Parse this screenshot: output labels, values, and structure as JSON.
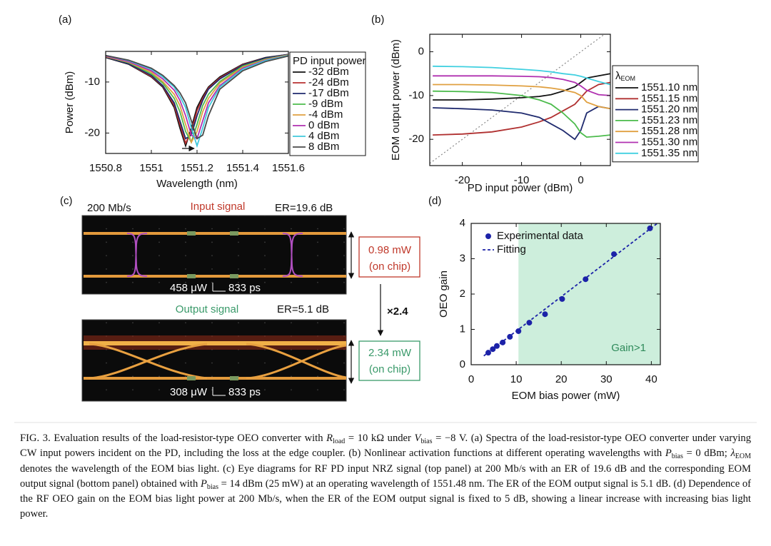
{
  "chart_data": [
    {
      "type": "line",
      "panel": "(a)",
      "x_label": "Wavelength (nm)",
      "y_label": "Power (dBm)",
      "x": [
        1550.8,
        1550.9,
        1551.0,
        1551.05,
        1551.1,
        1551.125,
        1551.15,
        1551.175,
        1551.2,
        1551.225,
        1551.25,
        1551.3,
        1551.4,
        1551.5,
        1551.6
      ],
      "xlim": [
        1550.8,
        1551.6
      ],
      "xticks": [
        1550.8,
        1551,
        1551.2,
        1551.4,
        1551.6
      ],
      "ylim": [
        -24,
        -4
      ],
      "yticks": [
        -20,
        -10
      ],
      "legend": "right",
      "legend_title": "PD input power",
      "series": [
        {
          "name": "-32 dBm",
          "color": "#111111",
          "values": [
            -5.2,
            -6.5,
            -9,
            -11,
            -15,
            -19,
            -22.5,
            -19,
            -15,
            -12.8,
            -11,
            -9,
            -6.5,
            -5.2,
            -4.6
          ]
        },
        {
          "name": "-24 dBm",
          "color": "#b83030",
          "values": [
            -5.1,
            -6.4,
            -8.9,
            -10.8,
            -14.6,
            -18.3,
            -22,
            -19.7,
            -15.6,
            -13.2,
            -11.2,
            -9.2,
            -6.6,
            -5.3,
            -4.6
          ]
        },
        {
          "name": "-17 dBm",
          "color": "#1f2a6e",
          "values": [
            -5.1,
            -6.4,
            -8.7,
            -10.7,
            -14.1,
            -17.6,
            -21.1,
            -20.4,
            -16.6,
            -13.6,
            -11.4,
            -9.4,
            -6.7,
            -5.3,
            -4.6
          ]
        },
        {
          "name": "-9 dBm",
          "color": "#4cbb4c",
          "values": [
            -5,
            -6.2,
            -8.4,
            -10.2,
            -13.2,
            -15.8,
            -19.7,
            -21.8,
            -18.3,
            -14.6,
            -12.4,
            -9.9,
            -6.9,
            -5.5,
            -4.7
          ]
        },
        {
          "name": "-4 dBm",
          "color": "#e0a040",
          "values": [
            -5,
            -6.1,
            -8.1,
            -9.9,
            -12.4,
            -14.6,
            -18.3,
            -21.8,
            -19.7,
            -15.8,
            -13.2,
            -10.2,
            -7.1,
            -5.6,
            -4.7
          ]
        },
        {
          "name": "0 dBm",
          "color": "#b030b0",
          "values": [
            -4.9,
            -6,
            -7.8,
            -9.4,
            -11.6,
            -13.6,
            -16.6,
            -20.4,
            -21.1,
            -17.6,
            -14.1,
            -10.7,
            -7.3,
            -5.7,
            -4.8
          ]
        },
        {
          "name": "4 dBm",
          "color": "#40c8dc",
          "values": [
            -4.8,
            -5.8,
            -7.5,
            -9,
            -11,
            -12.8,
            -15,
            -19,
            -22.5,
            -19,
            -15,
            -11,
            -7.5,
            -5.8,
            -4.8
          ]
        },
        {
          "name": "8 dBm",
          "color": "#4a4a4a",
          "values": [
            -4.8,
            -5.7,
            -7.3,
            -8.7,
            -10.7,
            -12.1,
            -14.1,
            -17.6,
            -21.1,
            -20.4,
            -16.6,
            -11.4,
            -7.8,
            -6,
            -4.9
          ]
        }
      ]
    },
    {
      "type": "line",
      "panel": "(b)",
      "x_label": "PD input power (dBm)",
      "y_label": "EOM output power (dBm)",
      "x": [
        -25,
        -20,
        -15,
        -10,
        -7,
        -5,
        -3,
        -1,
        0,
        1,
        3,
        5
      ],
      "xlim": [
        -25.5,
        5
      ],
      "xticks": [
        -20,
        -10,
        0
      ],
      "ylim": [
        -26,
        4
      ],
      "yticks": [
        -20,
        -10,
        0
      ],
      "legend": "right",
      "legend_title": {
        "symbol": "λ",
        "subscript": "EOM"
      },
      "series": [
        {
          "name": "1551.10 nm",
          "color": "#111111",
          "values": [
            -11,
            -11,
            -10.8,
            -10.5,
            -10.2,
            -9.8,
            -9,
            -8,
            -7,
            -6,
            -5.5,
            -5
          ]
        },
        {
          "name": "1551.15 nm",
          "color": "#b03030",
          "values": [
            -19,
            -18.8,
            -18.3,
            -17.2,
            -16,
            -15,
            -13.5,
            -12,
            -10.5,
            -9,
            -7.5,
            -7
          ]
        },
        {
          "name": "1551.20 nm",
          "color": "#1f2a6e",
          "values": [
            -12.8,
            -13,
            -13.3,
            -14,
            -15,
            -16.5,
            -18,
            -20,
            -18,
            -14,
            -12.5,
            -13
          ]
        },
        {
          "name": "1551.23 nm",
          "color": "#4cbb4c",
          "values": [
            -9,
            -9.1,
            -9.3,
            -10,
            -11,
            -12,
            -14,
            -16.5,
            -18.5,
            -19.5,
            -19.3,
            -19
          ]
        },
        {
          "name": "1551.28 nm",
          "color": "#e0a040",
          "values": [
            -7.5,
            -7.5,
            -7.6,
            -7.8,
            -8,
            -8.3,
            -8.7,
            -9.3,
            -10,
            -11.5,
            -12.5,
            -13
          ]
        },
        {
          "name": "1551.30 nm",
          "color": "#b030b0",
          "values": [
            -5.5,
            -5.5,
            -5.5,
            -5.6,
            -5.7,
            -5.9,
            -6.3,
            -7,
            -7.8,
            -8.8,
            -9.8,
            -10
          ]
        },
        {
          "name": "1551.35 nm",
          "color": "#40d0e0",
          "values": [
            -3.3,
            -3.4,
            -3.6,
            -4,
            -4.3,
            -4.6,
            -5,
            -5.3,
            -5.6,
            -6,
            -6.8,
            -7.5
          ]
        }
      ]
    },
    {
      "type": "scatter",
      "panel": "(d)",
      "x_label": "EOM bias power (mW)",
      "y_label": "OEO gain",
      "xlim": [
        0,
        42
      ],
      "xticks": [
        0,
        10,
        20,
        30,
        40
      ],
      "ylim": [
        0,
        4
      ],
      "yticks": [
        0,
        1,
        2,
        3,
        4
      ],
      "legend": "upper left",
      "shade": {
        "x": [
          10.5,
          42
        ],
        "color": "#cdeedc",
        "label": "Gain>1"
      },
      "series": [
        {
          "name": "Experimental data",
          "color": "#1c22a8",
          "x": [
            3.8,
            4.8,
            5.7,
            7.0,
            8.6,
            10.5,
            12.9,
            16.4,
            20.2,
            25.4,
            31.7,
            39.7
          ],
          "values": [
            0.34,
            0.44,
            0.53,
            0.63,
            0.79,
            0.95,
            1.19,
            1.43,
            1.86,
            2.42,
            3.13,
            3.86
          ]
        },
        {
          "name": "Fitting",
          "type": "line",
          "style": "dashed",
          "color": "#1c22a8",
          "x": [
            2.8,
            41.3
          ],
          "values": [
            0.25,
            4.0
          ]
        }
      ]
    }
  ],
  "eye_diagrams": {
    "panel": "(c)",
    "bit_rate": "200 Mb/s",
    "gain": "×2.4",
    "input": {
      "title": "Input signal",
      "er": "ER=19.6 dB",
      "power": "0.98 mW",
      "note": "(on chip)",
      "y_scale": "458 μW",
      "x_scale": "833 ps"
    },
    "output": {
      "title": "Output signal",
      "er": "ER=5.1 dB",
      "power": "2.34 mW",
      "note": "(on chip)",
      "y_scale": "308 μW",
      "x_scale": "833 ps"
    }
  },
  "caption": [
    "FIG. 3. Evaluation results of the load-resistor-type OEO converter with ",
    "R",
    "load",
    " = 10 kΩ under ",
    "V",
    "bias",
    " = −8 V. (a) Spectra of the load-resistor-type OEO converter under varying CW input powers incident on the PD, including the loss at the edge coupler. (b) Nonlinear activation functions at different operating wavelengths with ",
    "P",
    "bias",
    " = 0 dBm; ",
    "λ",
    "EOM",
    " denotes the wavelength of the EOM bias light. (c) Eye diagrams for RF PD input NRZ signal (top panel) at 200 Mb/s with an ER of 19.6 dB and the corresponding EOM output signal (bottom panel) obtained with ",
    "P",
    "bias",
    " = 14 dBm (25 mW) at an operating wavelength of 1551.48 nm. The ER of the EOM output signal is 5.1 dB. (d) Dependence of the RF OEO gain on the EOM bias light power at 200 Mb/s, when the ER of the EOM output signal is fixed to 5 dB, showing a linear increase with increasing bias light power."
  ]
}
